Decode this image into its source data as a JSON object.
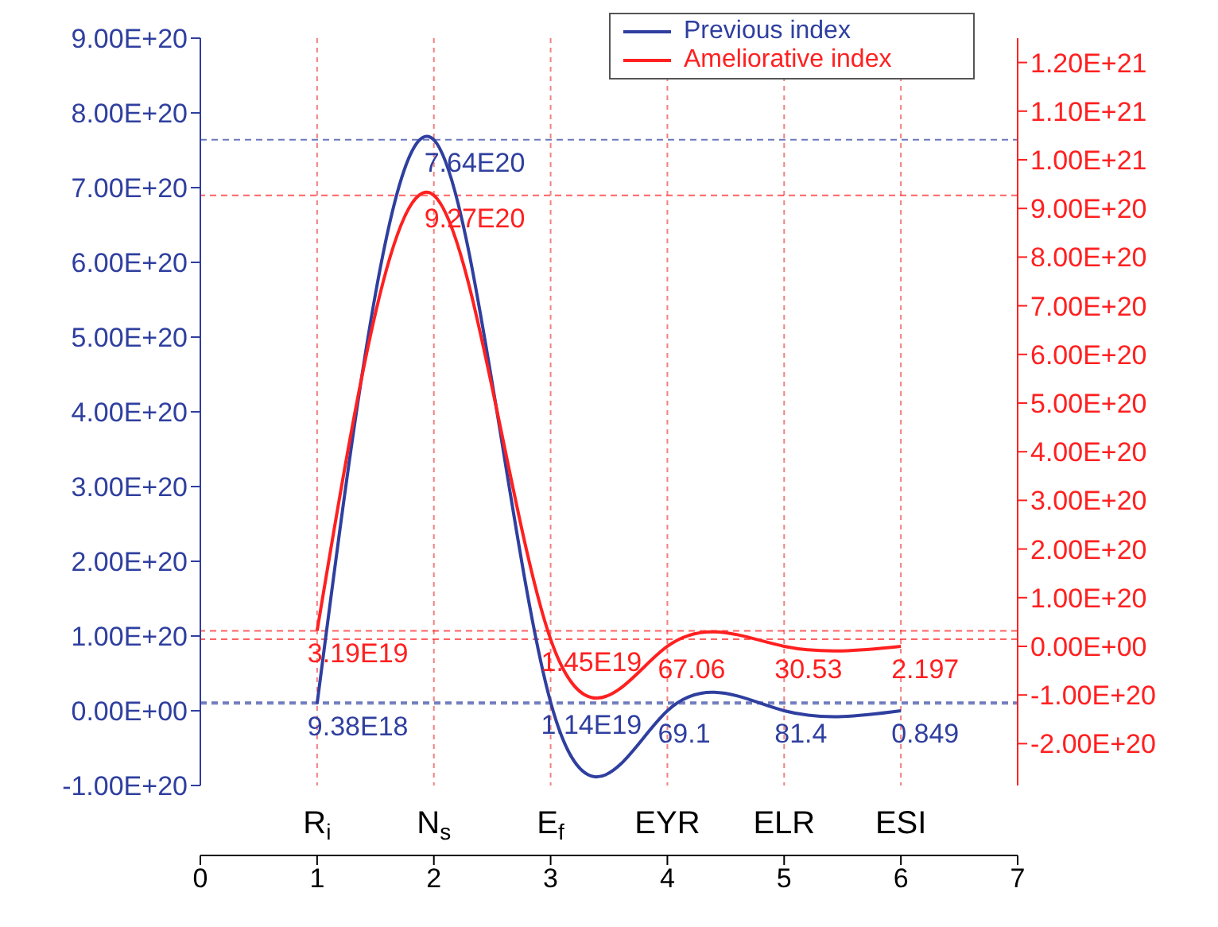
{
  "chart_data": {
    "type": "line",
    "x": [
      1,
      2,
      3,
      4,
      5,
      6
    ],
    "xlim": [
      0,
      7
    ],
    "xticks": [
      0,
      1,
      2,
      3,
      4,
      5,
      6,
      7
    ],
    "annotations": [
      "R$_{i}$",
      "N$_{s}$",
      "E$_{f}$",
      "EYR",
      "ELR",
      "ESI"
    ],
    "ylim": [
      -1e+20,
      9e+20
    ],
    "yticks": [
      {
        "value": -1e+20,
        "label": "-1.00E+20"
      },
      {
        "value": 0,
        "label": "0.00E+00"
      },
      {
        "value": 1e+20,
        "label": "1.00E+20"
      },
      {
        "value": 2e+20,
        "label": "2.00E+20"
      },
      {
        "value": 3e+20,
        "label": "3.00E+20"
      },
      {
        "value": 4e+20,
        "label": "4.00E+20"
      },
      {
        "value": 5e+20,
        "label": "5.00E+20"
      },
      {
        "value": 6e+20,
        "label": "6.00E+20"
      },
      {
        "value": 7e+20,
        "label": "7.00E+20"
      },
      {
        "value": 8e+20,
        "label": "8.00E+20"
      },
      {
        "value": 9e+20,
        "label": "9.00E+20"
      }
    ],
    "y2lim": [
      -2.86e+20,
      1.25e+21
    ],
    "y2ticks": [
      {
        "value": -2e+20,
        "label": "-2.00E+20"
      },
      {
        "value": -1e+20,
        "label": "-1.00E+20"
      },
      {
        "value": 0,
        "label": "0.00E+00"
      },
      {
        "value": 1e+20,
        "label": "1.00E+20"
      },
      {
        "value": 2e+20,
        "label": "2.00E+20"
      },
      {
        "value": 3e+20,
        "label": "3.00E+20"
      },
      {
        "value": 4e+20,
        "label": "4.00E+20"
      },
      {
        "value": 5e+20,
        "label": "5.00E+20"
      },
      {
        "value": 6e+20,
        "label": "6.00E+20"
      },
      {
        "value": 7e+20,
        "label": "7.00E+20"
      },
      {
        "value": 8e+20,
        "label": "8.00E+20"
      },
      {
        "value": 9e+20,
        "label": "9.00E+20"
      },
      {
        "value": 1e+21,
        "label": "1.00E+21"
      },
      {
        "value": 1.1e+21,
        "label": "1.10E+21"
      },
      {
        "value": 1.2e+21,
        "label": "1.20E+21"
      }
    ],
    "series": [
      {
        "name": "Previous index",
        "color": "#2f3f9f",
        "values": [
          9.38e+18,
          7.64e+20,
          1.14e+19,
          69.1,
          81.4,
          0.849
        ],
        "value_labels": [
          "9.38E18",
          "7.64E20",
          "1.14E19",
          "69.1",
          "81.4",
          "0.849"
        ]
      },
      {
        "name": "Ameliorative index",
        "color": "#ff2020",
        "axis": "y2",
        "values": [
          3.19e+19,
          9.27e+20,
          1.45e+19,
          67.06,
          30.53,
          2.197
        ],
        "value_labels": [
          "3.19E19",
          "9.27E20",
          "1.45E19",
          "67.06",
          "30.53",
          "2.197"
        ]
      }
    ],
    "ref_lines": [
      {
        "axis": "y",
        "value": 7.64e+20,
        "color": "#2f3f9f",
        "line_style": "dashed"
      },
      {
        "axis": "y",
        "value": 9.38e+18,
        "color": "#2f3f9f",
        "line_style": "dashed"
      },
      {
        "axis": "y",
        "value": 1.14e+19,
        "color": "#2f3f9f",
        "line_style": "dashed"
      },
      {
        "axis": "y2",
        "value": 9.27e+20,
        "color": "#ff2020",
        "line_style": "dashed"
      },
      {
        "axis": "y2",
        "value": 3.19e+19,
        "color": "#ff2020",
        "line_style": "dashed"
      },
      {
        "axis": "y2",
        "value": 1.45e+19,
        "color": "#ff2020",
        "line_style": "dashed"
      }
    ],
    "grid": "x",
    "legend": "top right"
  }
}
